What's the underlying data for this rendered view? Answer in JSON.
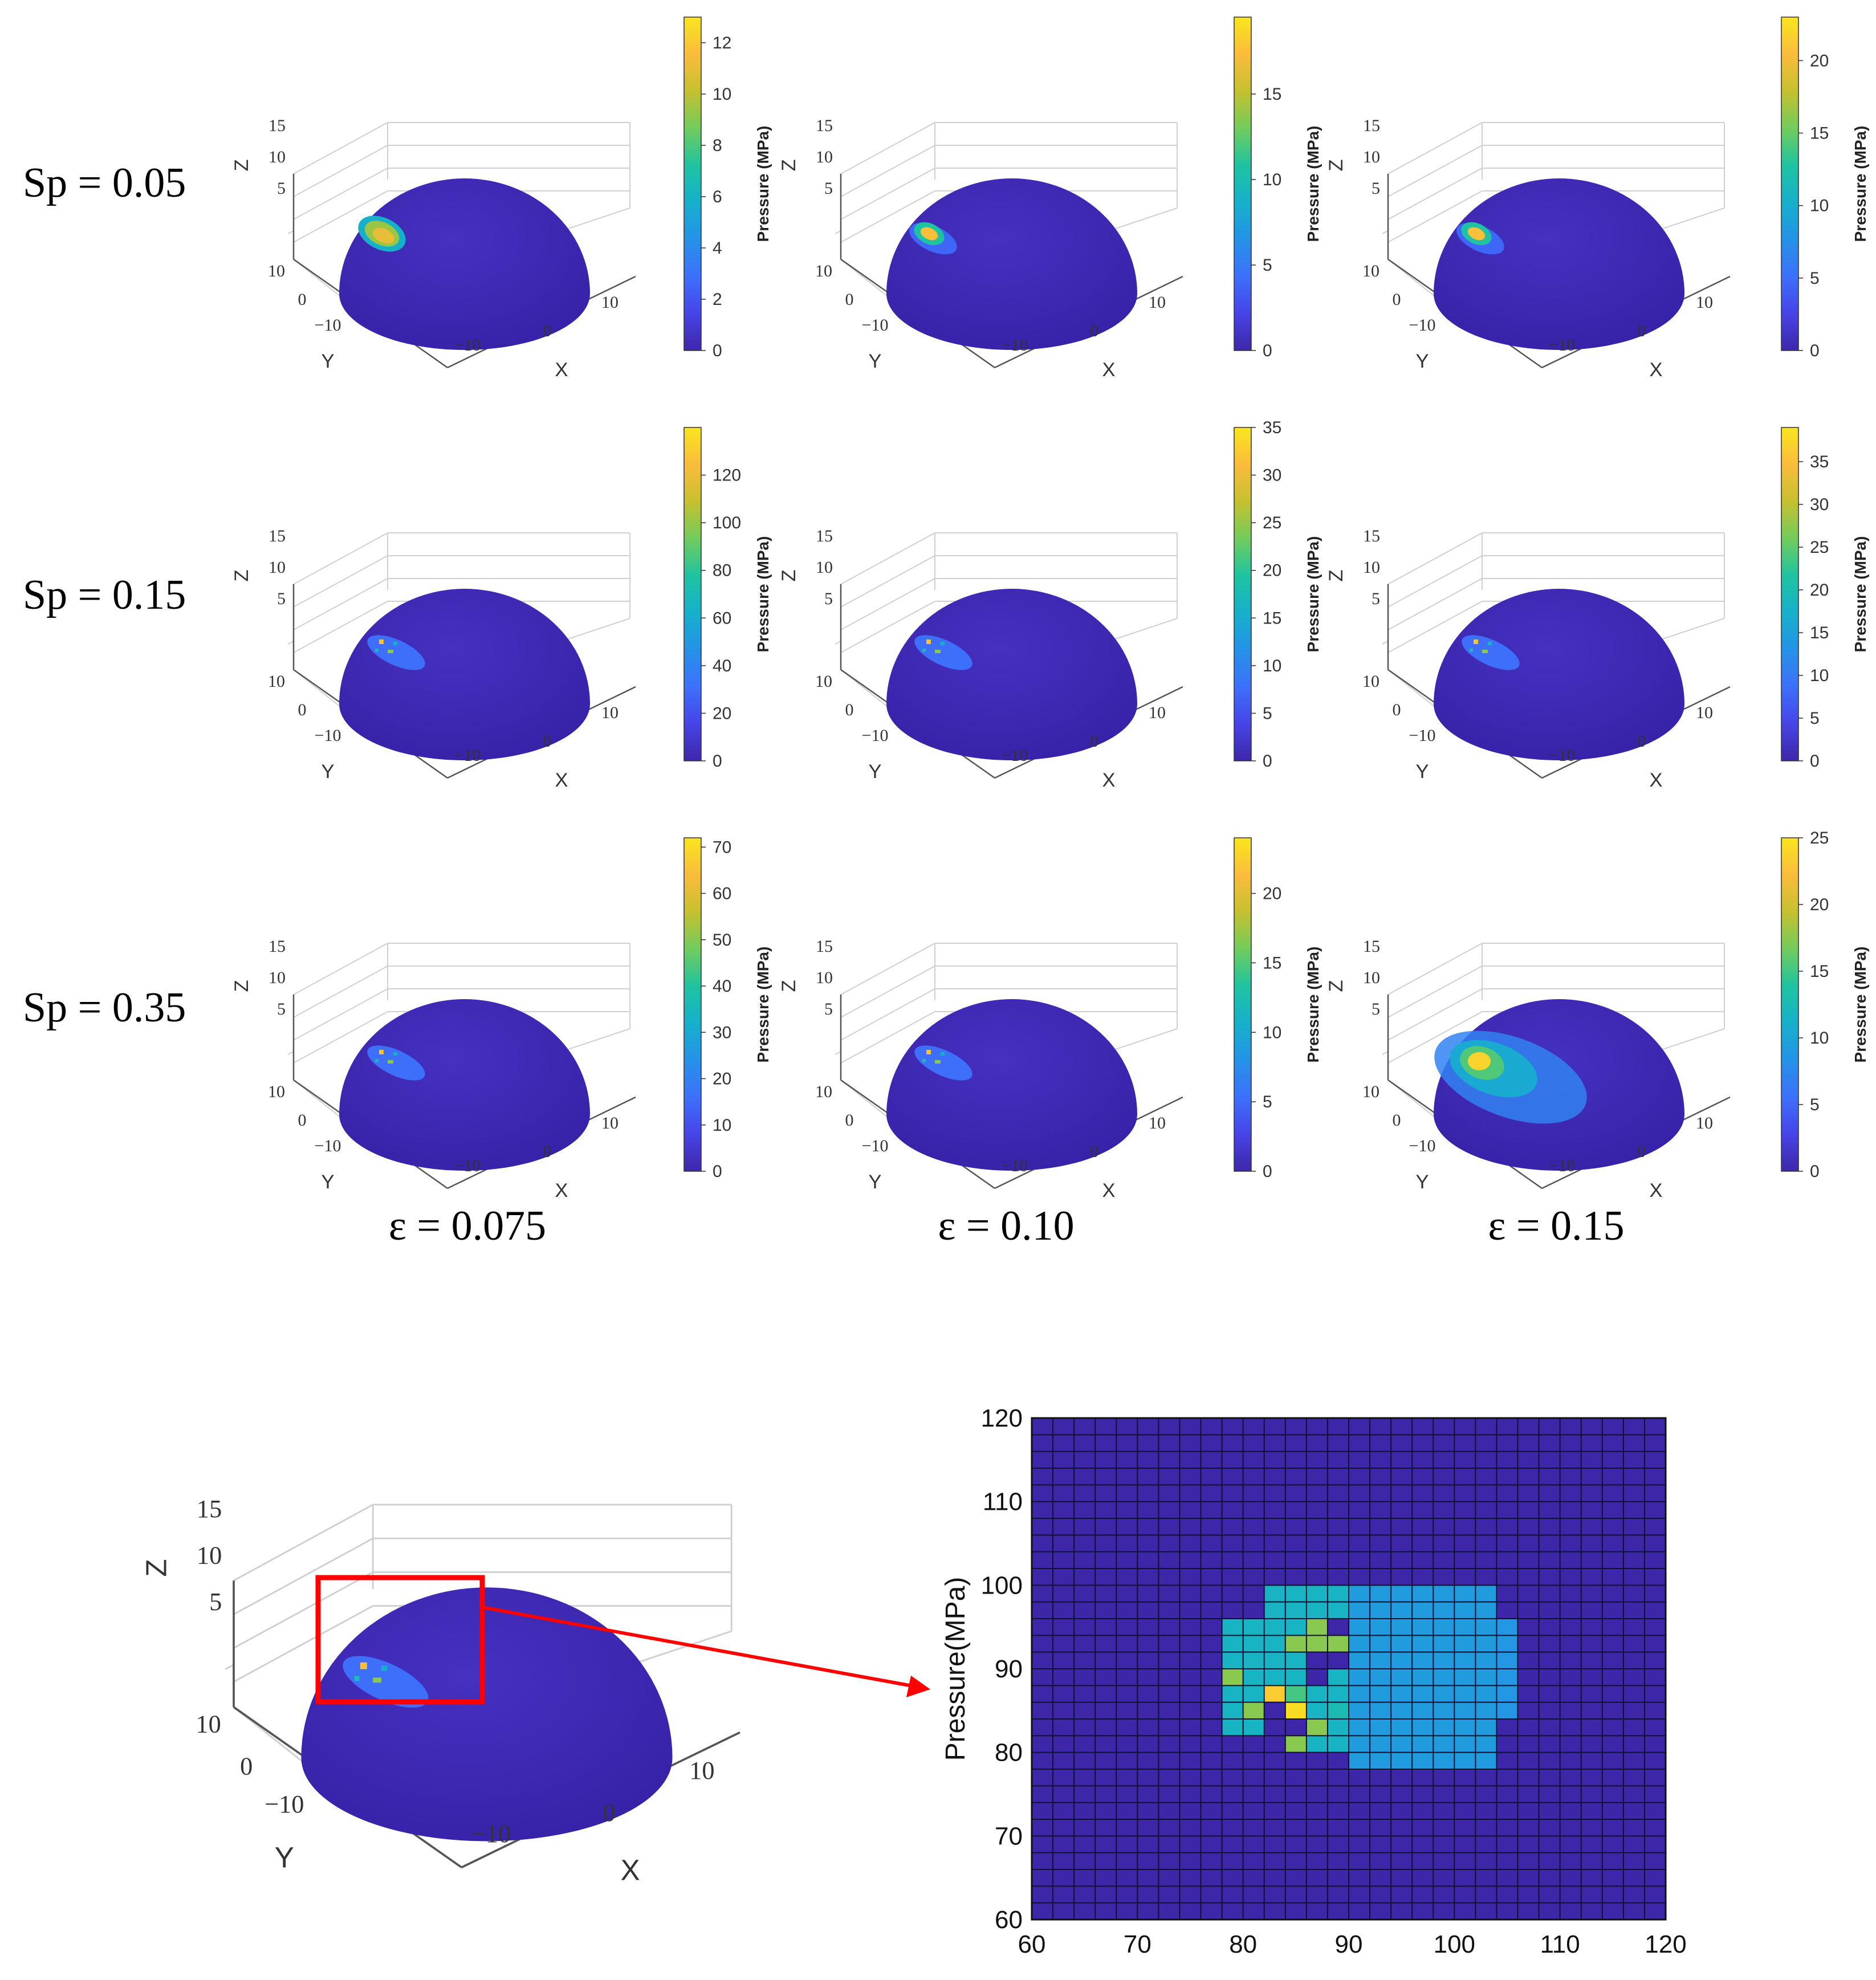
{
  "figure": {
    "row_labels": [
      "Sp = 0.05",
      "Sp = 0.15",
      "Sp = 0.35"
    ],
    "col_labels": [
      "ε = 0.075",
      "ε = 0.10",
      "ε = 0.15"
    ],
    "colormap": [
      "#3e26a8",
      "#4744e7",
      "#3d70fb",
      "#2592e8",
      "#16b0cb",
      "#1fc3a0",
      "#72cc5c",
      "#c6c02f",
      "#fbbc3c",
      "#f9e61e"
    ],
    "sphere_color": "#3d25b0",
    "zoom_box_color": "#ff0000"
  },
  "chart_data": [
    {
      "type": "surface3d",
      "row": 0,
      "col": 0,
      "zlabel": "Z",
      "xlabel": "X",
      "ylabel": "Y",
      "zticks": [
        "15",
        "10",
        "5"
      ],
      "xticks": [
        "10",
        "0",
        "−10"
      ],
      "yticks": [
        "10",
        "0",
        "−10"
      ],
      "colorbar": {
        "label": "Pressure (MPa)",
        "min": 0,
        "max": 13,
        "ticks": [
          "0",
          "2",
          "4",
          "6",
          "8",
          "10",
          "12"
        ]
      },
      "hotspot": {
        "peak": 12,
        "spread": "medium"
      }
    },
    {
      "type": "surface3d",
      "row": 0,
      "col": 1,
      "zlabel": "Z",
      "xlabel": "X",
      "ylabel": "Y",
      "zticks": [
        "15",
        "10",
        "5"
      ],
      "xticks": [
        "10",
        "0",
        "−10"
      ],
      "yticks": [
        "10",
        "0",
        "−10"
      ],
      "colorbar": {
        "label": "Pressure (MPa)",
        "min": 0,
        "max": 19.5,
        "ticks": [
          "0",
          "5",
          "10",
          "15"
        ]
      },
      "hotspot": {
        "peak": 19,
        "spread": "small"
      }
    },
    {
      "type": "surface3d",
      "row": 0,
      "col": 2,
      "zlabel": "Z",
      "xlabel": "X",
      "ylabel": "Y",
      "zticks": [
        "15",
        "10",
        "5"
      ],
      "xticks": [
        "10",
        "0",
        "−10"
      ],
      "yticks": [
        "10",
        "0",
        "−10"
      ],
      "colorbar": {
        "label": "Pressure (MPa)",
        "min": 0,
        "max": 23,
        "ticks": [
          "0",
          "5",
          "10",
          "15",
          "20"
        ]
      },
      "hotspot": {
        "peak": 22,
        "spread": "small"
      }
    },
    {
      "type": "surface3d",
      "row": 1,
      "col": 0,
      "zlabel": "Z",
      "xlabel": "X",
      "ylabel": "Y",
      "zticks": [
        "15",
        "10",
        "5"
      ],
      "xticks": [
        "10",
        "0",
        "−10"
      ],
      "yticks": [
        "10",
        "0",
        "−10"
      ],
      "colorbar": {
        "label": "Pressure (MPa)",
        "min": 0,
        "max": 140,
        "ticks": [
          "0",
          "20",
          "40",
          "60",
          "80",
          "100",
          "120"
        ]
      },
      "hotspot": {
        "peak": 135,
        "spread": "spots"
      }
    },
    {
      "type": "surface3d",
      "row": 1,
      "col": 1,
      "zlabel": "Z",
      "xlabel": "X",
      "ylabel": "Y",
      "zticks": [
        "15",
        "10",
        "5"
      ],
      "xticks": [
        "10",
        "0",
        "−10"
      ],
      "yticks": [
        "10",
        "0",
        "−10"
      ],
      "colorbar": {
        "label": "Pressure (MPa)",
        "min": 0,
        "max": 35,
        "ticks": [
          "0",
          "5",
          "10",
          "15",
          "20",
          "25",
          "30",
          "35"
        ]
      },
      "hotspot": {
        "peak": 34,
        "spread": "spots"
      }
    },
    {
      "type": "surface3d",
      "row": 1,
      "col": 2,
      "zlabel": "Z",
      "xlabel": "X",
      "ylabel": "Y",
      "zticks": [
        "15",
        "10",
        "5"
      ],
      "xticks": [
        "10",
        "0",
        "−10"
      ],
      "yticks": [
        "10",
        "0",
        "−10"
      ],
      "colorbar": {
        "label": "Pressure (MPa)",
        "min": 0,
        "max": 39,
        "ticks": [
          "0",
          "5",
          "10",
          "15",
          "20",
          "25",
          "30",
          "35"
        ]
      },
      "hotspot": {
        "peak": 37,
        "spread": "spots"
      }
    },
    {
      "type": "surface3d",
      "row": 2,
      "col": 0,
      "zlabel": "Z",
      "xlabel": "X",
      "ylabel": "Y",
      "zticks": [
        "15",
        "10",
        "5"
      ],
      "xticks": [
        "10",
        "0",
        "−10"
      ],
      "yticks": [
        "10",
        "0",
        "−10"
      ],
      "colorbar": {
        "label": "Pressure (MPa)",
        "min": 0,
        "max": 72,
        "ticks": [
          "0",
          "10",
          "20",
          "30",
          "40",
          "50",
          "60",
          "70"
        ]
      },
      "hotspot": {
        "peak": 70,
        "spread": "spots"
      }
    },
    {
      "type": "surface3d",
      "row": 2,
      "col": 1,
      "zlabel": "Z",
      "xlabel": "X",
      "ylabel": "Y",
      "zticks": [
        "15",
        "10",
        "5"
      ],
      "xticks": [
        "10",
        "0",
        "−10"
      ],
      "yticks": [
        "10",
        "0",
        "−10"
      ],
      "colorbar": {
        "label": "Pressure (MPa)",
        "min": 0,
        "max": 24,
        "ticks": [
          "0",
          "5",
          "10",
          "15",
          "20"
        ]
      },
      "hotspot": {
        "peak": 23,
        "spread": "spots"
      }
    },
    {
      "type": "surface3d",
      "row": 2,
      "col": 2,
      "zlabel": "Z",
      "xlabel": "X",
      "ylabel": "Y",
      "zticks": [
        "15",
        "10",
        "5"
      ],
      "xticks": [
        "10",
        "0",
        "−10"
      ],
      "yticks": [
        "10",
        "0",
        "−10"
      ],
      "colorbar": {
        "label": "Pressure (MPa)",
        "min": 0,
        "max": 25,
        "ticks": [
          "0",
          "5",
          "10",
          "15",
          "20",
          "25"
        ]
      },
      "hotspot": {
        "peak": 24,
        "spread": "large"
      }
    },
    {
      "type": "surface3d",
      "role": "zoom-source",
      "zlabel": "Z",
      "xlabel": "X",
      "ylabel": "Y",
      "zticks": [
        "15",
        "10",
        "5"
      ],
      "xticks": [
        "10",
        "0",
        "−10"
      ],
      "yticks": [
        "10",
        "0",
        "−10"
      ]
    },
    {
      "type": "heatmap",
      "role": "zoom-detail",
      "ylabel": "Pressure(MPa)",
      "xlim": [
        60,
        120
      ],
      "ylim": [
        60,
        120
      ],
      "xticks": [
        "60",
        "70",
        "80",
        "90",
        "100",
        "110",
        "120"
      ],
      "yticks": [
        "60",
        "70",
        "80",
        "90",
        "100",
        "110",
        "120"
      ],
      "cell_size": 2,
      "levels_note": "0=background,1..4 increasing pressure",
      "cells": [
        {
          "x": [
            82,
            90
          ],
          "y": [
            80,
            100
          ],
          "v": 2
        },
        {
          "x": [
            90,
            104
          ],
          "y": [
            78,
            100
          ],
          "v": 1.6
        },
        {
          "x": [
            78,
            82
          ],
          "y": [
            82,
            96
          ],
          "v": 2
        },
        {
          "x": [
            104,
            106
          ],
          "y": [
            84,
            96
          ],
          "v": 1.5
        },
        {
          "x": [
            86,
            90
          ],
          "y": [
            90,
            96
          ],
          "v": 0
        },
        {
          "x": [
            82,
            86
          ],
          "y": [
            80,
            86
          ],
          "v": 0
        },
        {
          "x": [
            86,
            88
          ],
          "y": [
            88,
            90
          ],
          "v": 0
        },
        {
          "x": [
            78,
            80
          ],
          "y": [
            88,
            90
          ],
          "v": 3
        },
        {
          "x": [
            80,
            82
          ],
          "y": [
            84,
            86
          ],
          "v": 3
        },
        {
          "x": [
            86,
            88
          ],
          "y": [
            82,
            84
          ],
          "v": 3
        },
        {
          "x": [
            84,
            86
          ],
          "y": [
            80,
            82
          ],
          "v": 3
        },
        {
          "x": [
            86,
            88
          ],
          "y": [
            94,
            96
          ],
          "v": 3
        },
        {
          "x": [
            84,
            86
          ],
          "y": [
            92,
            94
          ],
          "v": 3
        },
        {
          "x": [
            84,
            86
          ],
          "y": [
            86,
            88
          ],
          "v": 2.6
        },
        {
          "x": [
            82,
            84
          ],
          "y": [
            86,
            88
          ],
          "v": 4
        },
        {
          "x": [
            84,
            86
          ],
          "y": [
            84,
            86
          ],
          "v": 4.2
        },
        {
          "x": [
            88,
            90
          ],
          "y": [
            84,
            86
          ],
          "v": 2.2
        },
        {
          "x": [
            86,
            90
          ],
          "y": [
            92,
            94
          ],
          "v": 3
        }
      ]
    }
  ]
}
